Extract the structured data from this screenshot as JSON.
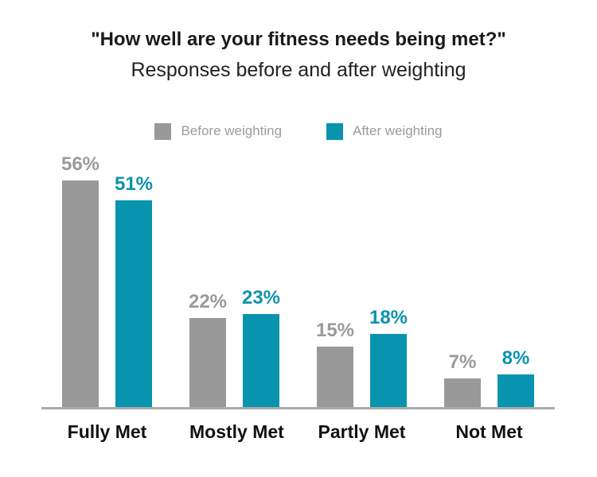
{
  "chart_data": {
    "type": "bar",
    "title": "\"How well are your fitness needs being met?\"",
    "subtitle": "Responses before and after weighting",
    "categories": [
      "Fully Met",
      "Mostly Met",
      "Partly Met",
      "Not Met"
    ],
    "series": [
      {
        "name": "Before weighting",
        "color": "#999999",
        "value_label_color": "#9a9a9a",
        "values": [
          56,
          22,
          15,
          7
        ],
        "value_labels": [
          "56%",
          "22%",
          "15%",
          "7%"
        ]
      },
      {
        "name": "After weighting",
        "color": "#0894ae",
        "value_label_color": "#0b93ad",
        "values": [
          51,
          23,
          18,
          8
        ],
        "value_labels": [
          "51%",
          "23%",
          "18%",
          "8%"
        ]
      }
    ],
    "unit": "%",
    "ylim": [
      0,
      60
    ],
    "grid": false,
    "legend_position": "top-center",
    "axis_line_color": "#ababab",
    "category_label_color": "#111111",
    "title_color": "#1a1a1a",
    "subtitle_color": "#222222",
    "legend_text_color": "#9b9b9b"
  }
}
